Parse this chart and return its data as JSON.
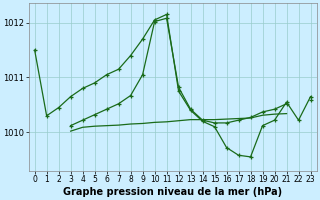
{
  "bg_color": "#cceeff",
  "grid_color": "#99cccc",
  "line_color": "#1a6b1a",
  "xlabel": "Graphe pression niveau de la mer (hPa)",
  "hours": [
    0,
    1,
    2,
    3,
    4,
    5,
    6,
    7,
    8,
    9,
    10,
    11,
    12,
    13,
    14,
    15,
    16,
    17,
    18,
    19,
    20,
    21,
    22,
    23
  ],
  "s1_y": [
    1011.5,
    1010.3,
    1010.45,
    1010.65,
    1010.8,
    1010.9,
    1011.05,
    1011.15,
    1011.4,
    1011.7,
    1012.05,
    1012.15,
    1010.75,
    1010.4,
    1010.2,
    1010.1,
    1009.72,
    1009.58,
    1009.55,
    1010.12,
    1010.22,
    1010.55,
    1010.22,
    1010.65
  ],
  "s2_y": [
    null,
    null,
    null,
    1010.12,
    1010.22,
    1010.32,
    1010.42,
    1010.52,
    1010.67,
    1011.05,
    1012.02,
    1012.08,
    1010.82,
    1010.42,
    1010.22,
    1010.17,
    1010.17,
    1010.22,
    1010.27,
    1010.37,
    1010.42,
    1010.52,
    null,
    1010.58
  ],
  "s3_y": [
    null,
    null,
    null,
    1010.02,
    1010.09,
    1010.11,
    1010.12,
    1010.13,
    1010.15,
    1010.16,
    1010.18,
    1010.19,
    1010.21,
    1010.23,
    1010.23,
    1010.23,
    1010.24,
    1010.25,
    1010.26,
    1010.31,
    1010.33,
    1010.34,
    null,
    null
  ],
  "ylim": [
    1009.3,
    1012.35
  ],
  "yticks": [
    1010,
    1011,
    1012
  ],
  "ylabel_fontsize": 6,
  "xlabel_fontsize": 7,
  "tick_fontsize": 5.5,
  "linewidth": 0.9,
  "markersize": 3.5,
  "figsize": [
    3.2,
    2.0
  ],
  "dpi": 100
}
